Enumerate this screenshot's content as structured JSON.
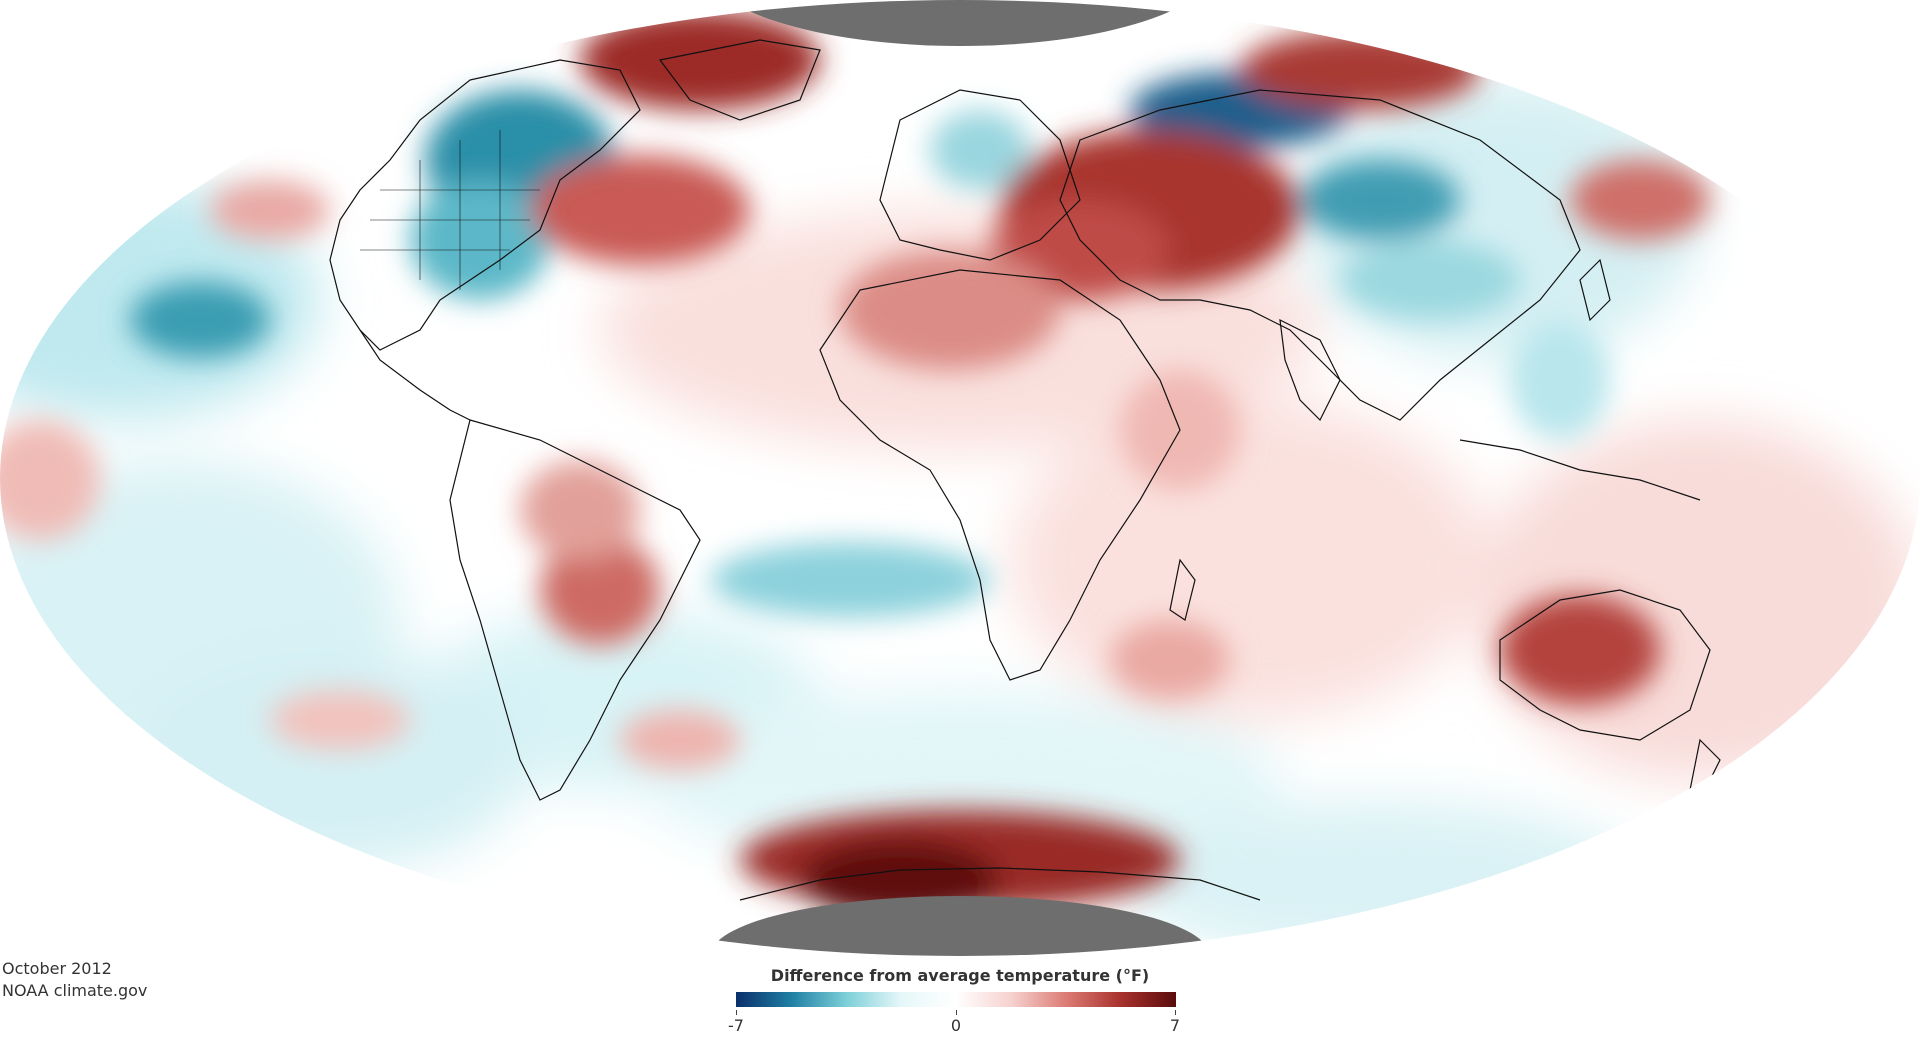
{
  "caption": {
    "date": "October 2012",
    "source": "NOAA climate.gov"
  },
  "legend": {
    "title": "Difference from average temperature (°F)",
    "min_label": "-7",
    "mid_label": "0",
    "max_label": "7",
    "min": -7,
    "max": 7,
    "colors": [
      "#0b2f6b",
      "#1f7fa3",
      "#7ccfd8",
      "#e6f7f9",
      "#ffffff",
      "#f6d2d0",
      "#dc7b74",
      "#a8312c",
      "#5a0c0c"
    ]
  },
  "map": {
    "projection": "Mollweide",
    "ocean_fill": "#ffffff",
    "no_data_color": "#6e6e6e",
    "anomaly_regions": [
      {
        "region": "Central Canada / Northern US",
        "anomaly_f": -4
      },
      {
        "region": "Eastern Canada / Greenland coast",
        "anomaly_f": 4
      },
      {
        "region": "Western Russia / Eastern Europe",
        "anomaly_f": 4
      },
      {
        "region": "Siberia (north)",
        "anomaly_f": -5
      },
      {
        "region": "Central Asia / Mongolia",
        "anomaly_f": -3
      },
      {
        "region": "Northern Africa",
        "anomaly_f": 2.5
      },
      {
        "region": "South America interior",
        "anomaly_f": 3
      },
      {
        "region": "Western Australia",
        "anomaly_f": 4
      },
      {
        "region": "Southern Ocean near Antarctica",
        "anomaly_f": 6
      },
      {
        "region": "North Pacific",
        "anomaly_f": -3
      },
      {
        "region": "Equatorial Atlantic",
        "anomaly_f": -2
      }
    ]
  }
}
